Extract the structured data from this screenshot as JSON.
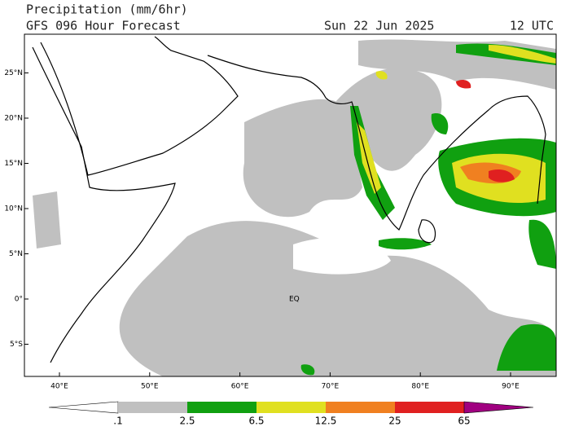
{
  "header": {
    "title": "Precipitation (mm/6hr)",
    "subtitle": "GFS 096 Hour Forecast",
    "date": "Sun 22 Jun 2025",
    "time": "12 UTC"
  },
  "map": {
    "lat_ticks": [
      {
        "value": 25,
        "label": "25°N"
      },
      {
        "value": 20,
        "label": "20°N"
      },
      {
        "value": 15,
        "label": "15°N"
      },
      {
        "value": 10,
        "label": "10°N"
      },
      {
        "value": 5,
        "label": "5°N"
      },
      {
        "value": 0,
        "label": "0°"
      },
      {
        "value": -5,
        "label": "5°S"
      }
    ],
    "lon_ticks": [
      {
        "value": 40,
        "label": "40°E"
      },
      {
        "value": 50,
        "label": "50°E"
      },
      {
        "value": 60,
        "label": "60°E"
      },
      {
        "value": 70,
        "label": "70°E"
      },
      {
        "value": 80,
        "label": "80°E"
      },
      {
        "value": 90,
        "label": "90°E"
      }
    ],
    "equator_label": "EQ"
  },
  "colorbar": {
    "labels": [
      ".1",
      "2.5",
      "6.5",
      "12.5",
      "25",
      "65"
    ],
    "colors": [
      "#ffffff",
      "#c0c0c0",
      "#10a010",
      "#e0e020",
      "#f08020",
      "#e02020",
      "#a00080"
    ]
  }
}
